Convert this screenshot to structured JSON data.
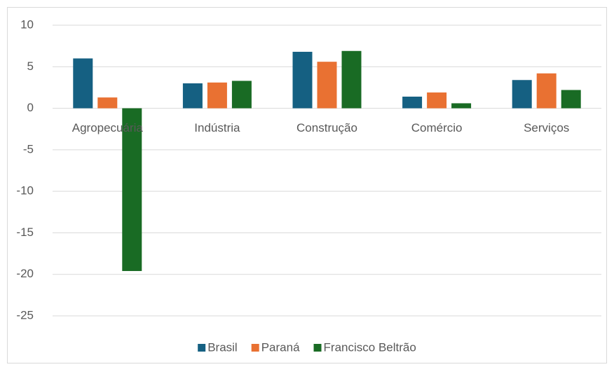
{
  "chart_data": {
    "type": "bar",
    "categories": [
      "Agropecuária",
      "Indústria",
      "Construção",
      "Comércio",
      "Serviços"
    ],
    "series": [
      {
        "name": "Brasil",
        "color": "#156082",
        "values": [
          6.0,
          3.0,
          6.8,
          1.4,
          3.4
        ]
      },
      {
        "name": "Paraná",
        "color": "#e97132",
        "values": [
          1.3,
          3.1,
          5.6,
          1.9,
          4.2
        ]
      },
      {
        "name": "Francisco Beltrão",
        "color": "#196b24",
        "values": [
          -19.6,
          3.3,
          6.9,
          0.6,
          2.2
        ]
      }
    ],
    "ylim": [
      -25,
      10
    ],
    "yticks": [
      -25,
      -20,
      -15,
      -10,
      -5,
      0,
      5,
      10
    ],
    "grid": true,
    "legend": "bottom"
  }
}
